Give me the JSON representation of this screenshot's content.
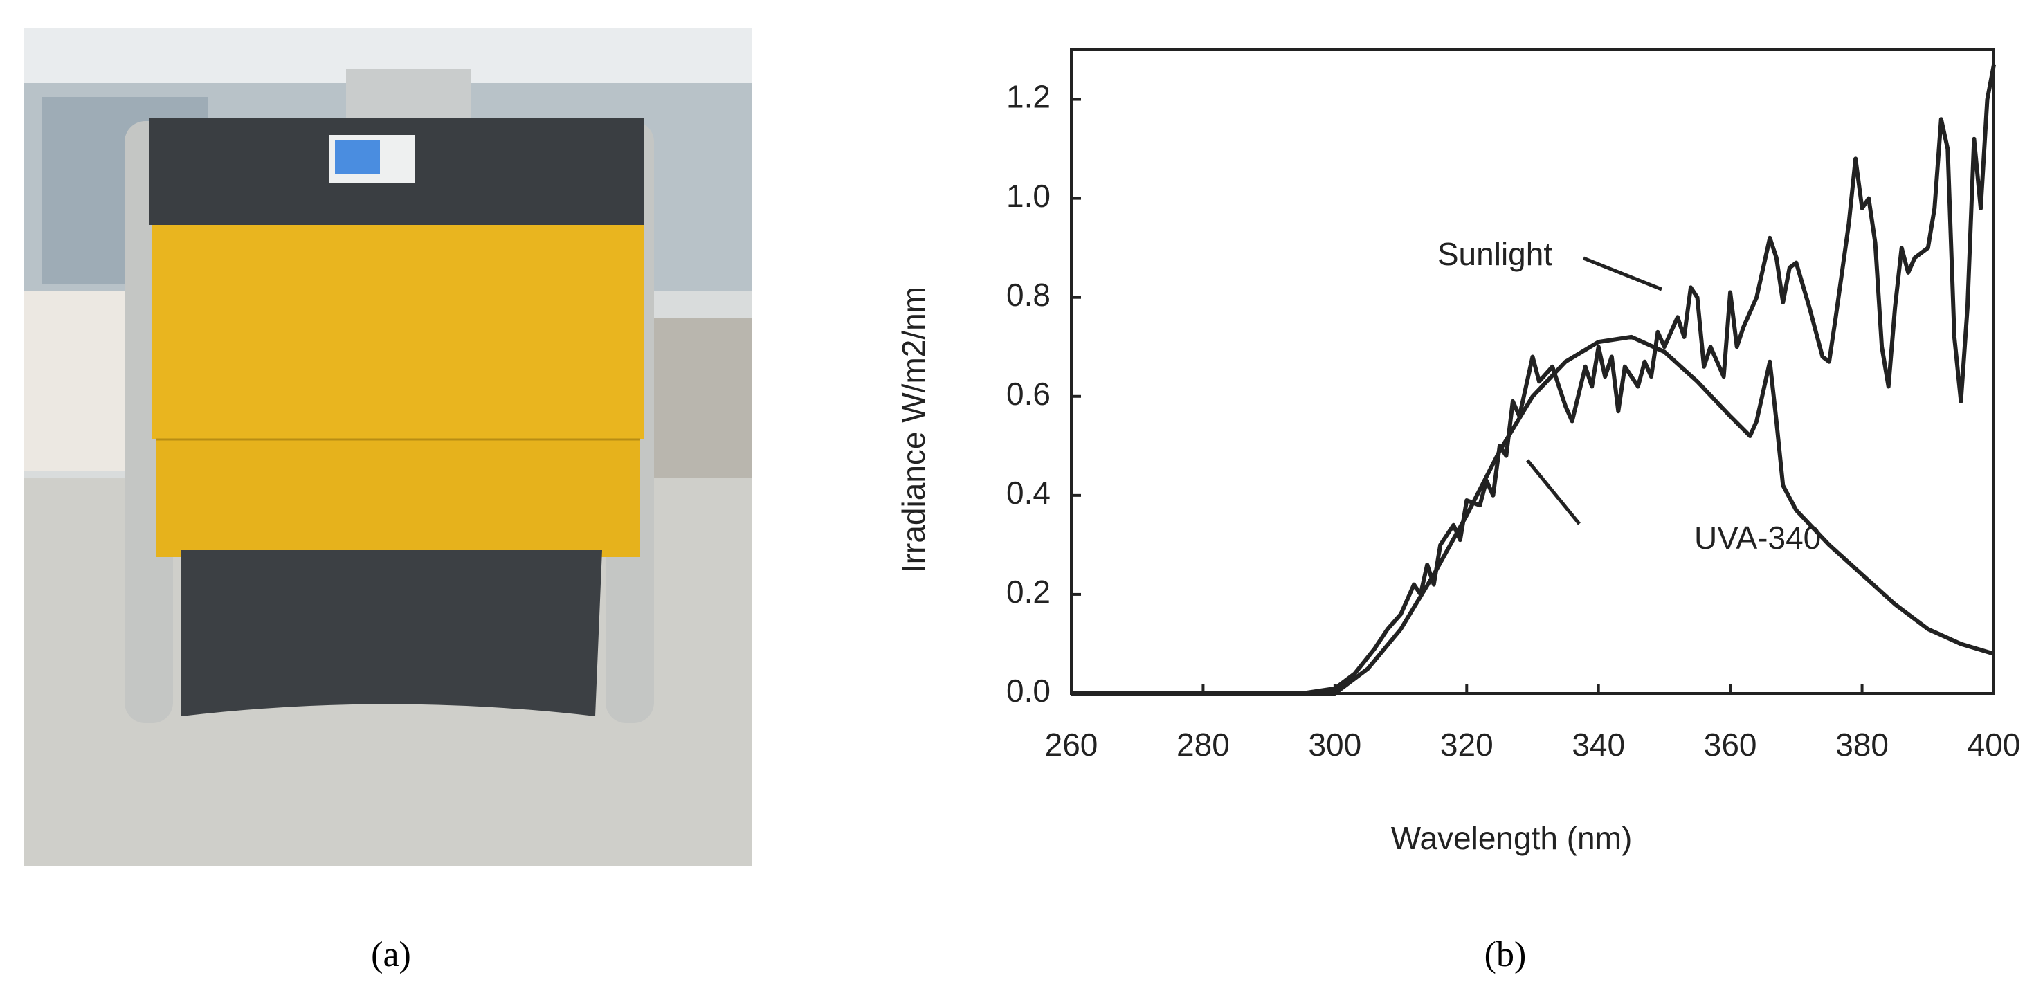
{
  "panels": [
    "(a)",
    "(b)"
  ],
  "chart_data": {
    "type": "line",
    "xlabel": "Wavelength (nm)",
    "ylabel": "Irradiance  W/m2/nm",
    "xlim": [
      260,
      400
    ],
    "ylim": [
      0,
      1.3
    ],
    "xticks": [
      260,
      280,
      300,
      320,
      340,
      360,
      380,
      400
    ],
    "yticks": [
      {
        "value": 0,
        "label": "0.0"
      },
      {
        "value": 0.2,
        "label": "0.2"
      },
      {
        "value": 0.4,
        "label": "0.4"
      },
      {
        "value": 0.6,
        "label": "0.6"
      },
      {
        "value": 0.8,
        "label": "0.8"
      },
      {
        "value": 1.0,
        "label": "1.0"
      },
      {
        "value": 1.2,
        "label": "1.2"
      }
    ],
    "series": [
      {
        "name": "Sunlight",
        "color": "#222222",
        "x": [
          260,
          295,
          300,
          303,
          306,
          308,
          310,
          312,
          313,
          314,
          315,
          316,
          318,
          319,
          320,
          322,
          323,
          324,
          325,
          326,
          327,
          328,
          330,
          331,
          333,
          335,
          336,
          338,
          339,
          340,
          341,
          342,
          343,
          344,
          346,
          347,
          348,
          349,
          350,
          352,
          353,
          354,
          355,
          356,
          357,
          359,
          360,
          361,
          362,
          364,
          366,
          367,
          368,
          369,
          370,
          372,
          374,
          375,
          376,
          378,
          379,
          380,
          381,
          382,
          383,
          384,
          385,
          386,
          387,
          388,
          390,
          391,
          392,
          393,
          394,
          395,
          396,
          397,
          398,
          399,
          400
        ],
        "values": [
          0,
          0,
          0.01,
          0.04,
          0.09,
          0.13,
          0.16,
          0.22,
          0.2,
          0.26,
          0.22,
          0.3,
          0.34,
          0.31,
          0.39,
          0.38,
          0.43,
          0.4,
          0.5,
          0.48,
          0.59,
          0.56,
          0.68,
          0.63,
          0.66,
          0.58,
          0.55,
          0.66,
          0.62,
          0.7,
          0.64,
          0.68,
          0.57,
          0.66,
          0.62,
          0.67,
          0.64,
          0.73,
          0.7,
          0.76,
          0.72,
          0.82,
          0.8,
          0.66,
          0.7,
          0.64,
          0.81,
          0.7,
          0.74,
          0.8,
          0.92,
          0.88,
          0.79,
          0.86,
          0.87,
          0.78,
          0.68,
          0.67,
          0.76,
          0.95,
          1.08,
          0.98,
          1.0,
          0.91,
          0.7,
          0.62,
          0.78,
          0.9,
          0.85,
          0.88,
          0.9,
          0.98,
          1.16,
          1.1,
          0.72,
          0.59,
          0.78,
          1.12,
          0.98,
          1.2,
          1.27
        ]
      },
      {
        "name": "UVA-340",
        "color": "#222222",
        "x": [
          260,
          295,
          300,
          305,
          310,
          315,
          320,
          325,
          330,
          335,
          340,
          345,
          350,
          355,
          360,
          363,
          364,
          366,
          367,
          368,
          370,
          375,
          380,
          385,
          390,
          395,
          400
        ],
        "values": [
          0,
          0,
          0,
          0.05,
          0.13,
          0.24,
          0.36,
          0.49,
          0.6,
          0.67,
          0.71,
          0.72,
          0.69,
          0.63,
          0.56,
          0.52,
          0.55,
          0.67,
          0.55,
          0.42,
          0.37,
          0.3,
          0.24,
          0.18,
          0.13,
          0.1,
          0.08
        ]
      }
    ]
  }
}
